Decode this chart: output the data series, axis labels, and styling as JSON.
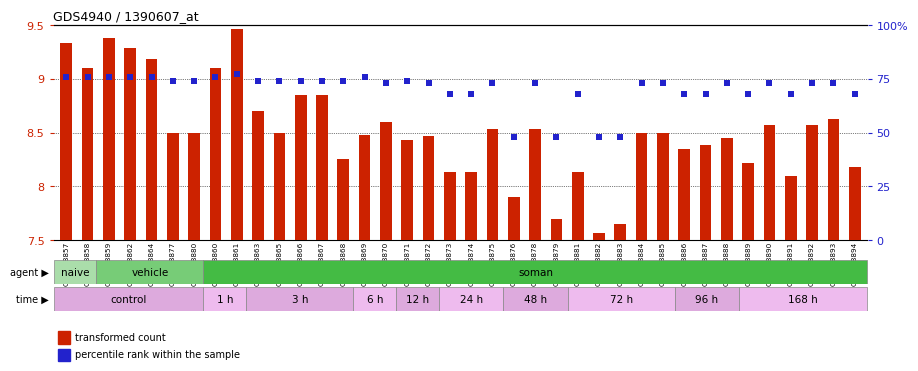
{
  "title": "GDS4940 / 1390607_at",
  "samples": [
    "GSM338857",
    "GSM338858",
    "GSM338859",
    "GSM338862",
    "GSM338864",
    "GSM338877",
    "GSM338880",
    "GSM338860",
    "GSM338861",
    "GSM338863",
    "GSM338865",
    "GSM338866",
    "GSM338867",
    "GSM338868",
    "GSM338869",
    "GSM338870",
    "GSM338871",
    "GSM338872",
    "GSM338873",
    "GSM338874",
    "GSM338875",
    "GSM338876",
    "GSM338878",
    "GSM338879",
    "GSM338881",
    "GSM338882",
    "GSM338883",
    "GSM338884",
    "GSM338885",
    "GSM338886",
    "GSM338887",
    "GSM338888",
    "GSM338889",
    "GSM338890",
    "GSM338891",
    "GSM338892",
    "GSM338893",
    "GSM338894"
  ],
  "bar_values": [
    9.33,
    9.1,
    9.38,
    9.29,
    9.18,
    8.5,
    8.5,
    9.1,
    9.46,
    8.7,
    8.5,
    8.85,
    8.85,
    8.25,
    8.48,
    8.6,
    8.43,
    8.47,
    8.13,
    8.13,
    8.53,
    7.9,
    8.53,
    7.7,
    8.13,
    7.57,
    7.65,
    8.5,
    8.5,
    8.35,
    8.38,
    8.45,
    8.22,
    8.57,
    8.1,
    8.57,
    8.63,
    8.18
  ],
  "percentile_values": [
    76,
    76,
    76,
    76,
    76,
    74,
    74,
    76,
    77,
    74,
    74,
    74,
    74,
    74,
    76,
    73,
    74,
    73,
    68,
    68,
    73,
    48,
    73,
    48,
    68,
    48,
    48,
    73,
    73,
    68,
    68,
    73,
    68,
    73,
    68,
    73,
    73,
    68
  ],
  "ylim_left": [
    7.5,
    9.5
  ],
  "ylim_right": [
    0,
    100
  ],
  "bar_color": "#cc2200",
  "dot_color": "#2222cc",
  "agent_groups": [
    {
      "label": "naive",
      "start": 0,
      "end": 2,
      "color": "#aaddaa"
    },
    {
      "label": "vehicle",
      "start": 2,
      "end": 7,
      "color": "#77cc77"
    },
    {
      "label": "soman",
      "start": 7,
      "end": 38,
      "color": "#44bb44"
    }
  ],
  "time_groups": [
    {
      "label": "control",
      "start": 0,
      "end": 7
    },
    {
      "label": "1 h",
      "start": 7,
      "end": 9
    },
    {
      "label": "3 h",
      "start": 9,
      "end": 14
    },
    {
      "label": "6 h",
      "start": 14,
      "end": 16
    },
    {
      "label": "12 h",
      "start": 16,
      "end": 18
    },
    {
      "label": "24 h",
      "start": 18,
      "end": 21
    },
    {
      "label": "48 h",
      "start": 21,
      "end": 24
    },
    {
      "label": "72 h",
      "start": 24,
      "end": 29
    },
    {
      "label": "96 h",
      "start": 29,
      "end": 32
    },
    {
      "label": "168 h",
      "start": 32,
      "end": 38
    }
  ],
  "time_colors": [
    "#ddaadd",
    "#eebbee",
    "#ddaadd",
    "#eebbee",
    "#ddaadd",
    "#eebbee",
    "#ddaadd",
    "#eebbee",
    "#ddaadd",
    "#eebbee"
  ]
}
